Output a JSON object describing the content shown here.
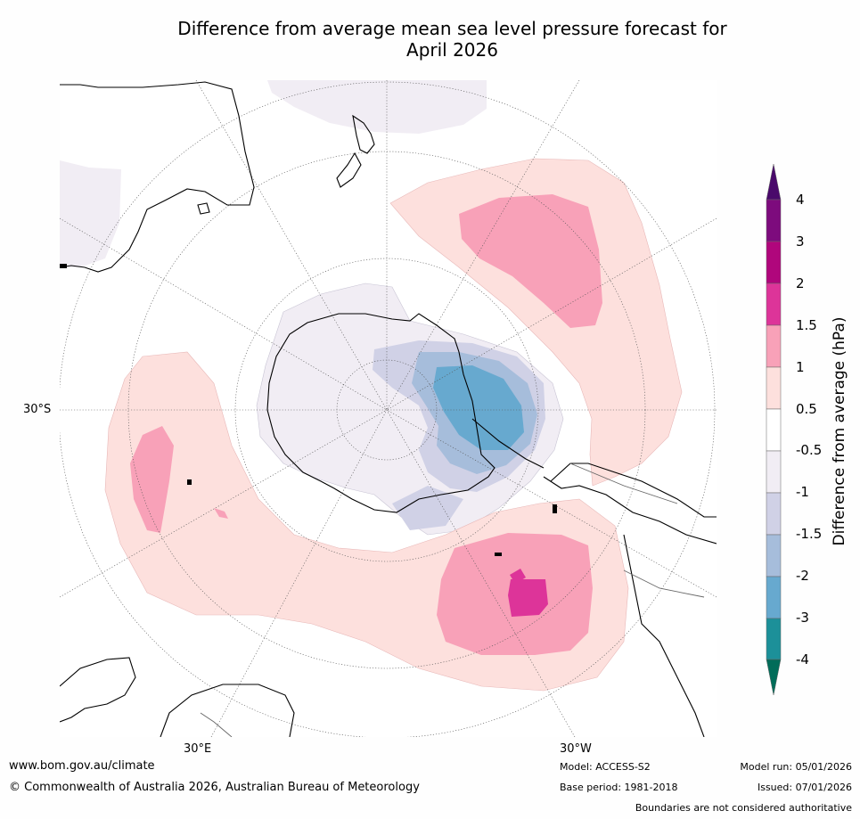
{
  "title": {
    "line1": "Difference from average mean sea level pressure forecast for",
    "line2": "April 2026"
  },
  "map": {
    "projection": "South polar stereographic",
    "axis_labels": {
      "lat": "30°S",
      "lon_east": "30°E",
      "lon_west": "30°W"
    }
  },
  "colorbar": {
    "title": "Difference from average (hPa)",
    "ticks": [
      "4",
      "3",
      "2",
      "1.5",
      "1",
      "0.5",
      "-0.5",
      "-1",
      "-1.5",
      "-2",
      "-3",
      "-4"
    ],
    "colors": {
      "above_4": "#4a0a6b",
      "3_to_4": "#7d0b7d",
      "2_to_3": "#b0067c",
      "1.5_to_2": "#dd3499",
      "1_to_1.5": "#f8a1b8",
      "0.5_to_1": "#fde0dd",
      "neutral": "#ffffff",
      "-1_to_-0.5": "#f1edf4",
      "-1.5_to_-1": "#d0d1e6",
      "-2_to_-1.5": "#a6bddb",
      "-3_to_-2": "#67a9cf",
      "-4_to_-3": "#1c9099",
      "below_-4": "#016c59"
    }
  },
  "footer": {
    "website": "www.bom.gov.au/climate",
    "copyright": "© Commonwealth of Australia 2026, Australian Bureau of Meteorology",
    "model": "Model: ACCESS-S2",
    "base_period": "Base period: 1981-2018",
    "model_run": "Model run: 05/01/2026",
    "issued": "Issued: 07/01/2026",
    "disclaimer": "Boundaries are not considered authoritative"
  }
}
